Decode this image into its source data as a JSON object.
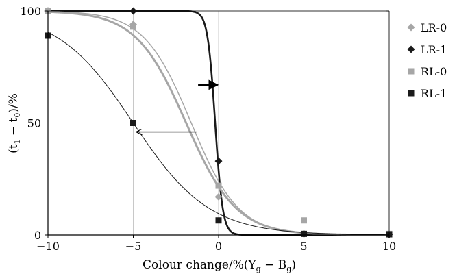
{
  "chart_data": {
    "type": "scatter",
    "title": "",
    "xlabel": {
      "prefix": "Colour change/%(Y",
      "sub1": "g",
      "mid": " − B",
      "sub2": "g",
      "suffix": ")"
    },
    "ylabel": {
      "open": "(t",
      "sub1": "1",
      "mid": " − t",
      "sub2": "0",
      "close": ")/%"
    },
    "xlim": [
      -10,
      10
    ],
    "ylim": [
      0,
      100
    ],
    "xticks": [
      -10,
      -5,
      0,
      5,
      10
    ],
    "xtick_labels": [
      "−10",
      "−5",
      "0",
      "5",
      "10"
    ],
    "yticks": [
      0,
      50,
      100
    ],
    "ytick_labels": [
      "0",
      "50",
      "100"
    ],
    "grid": true,
    "legend_position": "right",
    "series": [
      {
        "name": "LR-0",
        "marker": "diamond",
        "color": "#a6a6a6",
        "points": [
          [
            -10,
            100
          ],
          [
            -5,
            94
          ],
          [
            0,
            17
          ],
          [
            5,
            0.5
          ],
          [
            10,
            0.3
          ]
        ],
        "fit": {
          "x50": -1.6,
          "k": 0.72,
          "width": 1.5,
          "color": "#a6a6a6"
        }
      },
      {
        "name": "LR-1",
        "marker": "diamond",
        "color": "#1a1a1a",
        "points": [
          [
            -10,
            100
          ],
          [
            -5,
            100
          ],
          [
            0,
            33
          ],
          [
            5,
            0.5
          ],
          [
            10,
            0.3
          ]
        ],
        "fit": {
          "x50": -0.2,
          "k": 4.5,
          "width": 2.6,
          "color": "#1a1a1a"
        }
      },
      {
        "name": "RL-0",
        "marker": "square",
        "color": "#a6a6a6",
        "points": [
          [
            -10,
            100
          ],
          [
            -5,
            93
          ],
          [
            0,
            22
          ],
          [
            5,
            6.5
          ],
          [
            10,
            0.5
          ]
        ],
        "fit": {
          "x50": -1.9,
          "k": 0.68,
          "width": 3.0,
          "color": "#a6a6a6"
        }
      },
      {
        "name": "RL-1",
        "marker": "square",
        "color": "#1a1a1a",
        "points": [
          [
            -10,
            89
          ],
          [
            -5,
            50
          ],
          [
            0,
            6.5
          ],
          [
            5,
            0.5
          ],
          [
            10,
            0.3
          ]
        ],
        "fit": {
          "x50": -5,
          "k": 0.45,
          "width": 1.0,
          "color": "#1a1a1a"
        }
      }
    ],
    "annotations": [
      {
        "type": "arrow",
        "from": [
          -1.2,
          67
        ],
        "to": [
          -0.05,
          67
        ],
        "width": 3.0
      },
      {
        "type": "arrow",
        "from": [
          -1.3,
          46
        ],
        "to": [
          -4.8,
          46
        ],
        "width": 1.3
      }
    ]
  }
}
